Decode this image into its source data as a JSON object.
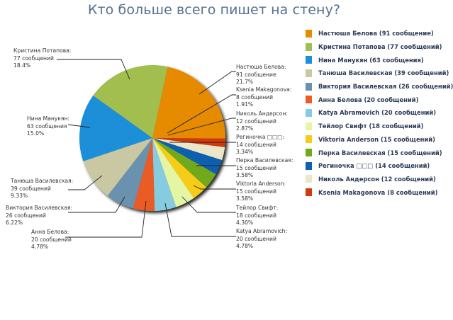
{
  "title": "Кто больше всего пишет на стену?",
  "chart_data": {
    "type": "pie",
    "title": "Кто больше всего пишет на стену?",
    "legend_position": "right",
    "start_angle_deg": 12,
    "direction": "clockwise",
    "slices": [
      {
        "name": "Настюша Белова",
        "value": 91,
        "count_text": "91 сообщение",
        "percent": "21.7%",
        "legend": "Настюша Белова (91 сообщение)",
        "color": "#e68a00"
      },
      {
        "name": "Ksenia Makagonova",
        "value": 8,
        "count_text": "8 сообщений",
        "percent": "1.91%",
        "legend": "Ksenia Makagonova (8 сообщений)",
        "color": "#d0390f"
      },
      {
        "name": "Николь Андерсон",
        "value": 12,
        "count_text": "12 сообщений",
        "percent": "2.87%",
        "legend": "Николь Андерсон (12 сообщений)",
        "color": "#ece6c8"
      },
      {
        "name": "Региночка □□□",
        "value": 14,
        "count_text": "14 сообщений",
        "percent": "3.34%",
        "legend": "Региночка □□□ (14 сообщений)",
        "color": "#1060b0"
      },
      {
        "name": "Перка Василевская",
        "value": 15,
        "count_text": "15 сообщений",
        "percent": "3.58%",
        "legend": "Перка Василевская (15 сообщений)",
        "color": "#6faa1a"
      },
      {
        "name": "Viktoria Anderson",
        "value": 15,
        "count_text": "15 сообщений",
        "percent": "3.58%",
        "legend": "Viktoria Anderson (15 сообщений)",
        "color": "#f6cc18"
      },
      {
        "name": "Тейлор Свифт",
        "value": 18,
        "count_text": "18 сообщений",
        "percent": "4.30%",
        "legend": "Тейлор Свифт (18 сообщений)",
        "color": "#e4f5a4"
      },
      {
        "name": "Katya Abramovich",
        "value": 20,
        "count_text": "20 сообщений",
        "percent": "4.78%",
        "legend": "Katya Abramovich (20 сообщений)",
        "color": "#86cce0"
      },
      {
        "name": "Анна Белова",
        "value": 20,
        "count_text": "20 сообщений",
        "percent": "4.78%",
        "legend": "Анна Белова (20 сообщений)",
        "color": "#ea5b25"
      },
      {
        "name": "Виктория Василевская",
        "value": 26,
        "count_text": "26 сообщений",
        "percent": "6.22%",
        "legend": "Виктория Василевская (26 сообщений)",
        "color": "#6a92ae"
      },
      {
        "name": "Танюша Василевская",
        "value": 39,
        "count_text": "39 сообщений",
        "percent": "9.33%",
        "legend": "Танюша Василевская (39 сообщений)",
        "color": "#c9c8a2"
      },
      {
        "name": "Нина Манукян",
        "value": 63,
        "count_text": "63 сообщения",
        "percent": "15.0%",
        "legend": "Нина Манукян (63 сообщения)",
        "color": "#1d8fd8"
      },
      {
        "name": "Кристина Потапова",
        "value": 77,
        "count_text": "77 сообщений",
        "percent": "18.4%",
        "legend": "Кристина Потапова (77 сообщений)",
        "color": "#a2be4f"
      }
    ],
    "legend_order": [
      "Настюша Белова (91 сообщение)",
      "Кристина Потапова (77 сообщений)",
      "Нина Манукян (63 сообщения)",
      "Танюша Василевская (39 сообщений)",
      "Виктория Василевская (26 сообщений)",
      "Анна Белова (20 сообщений)",
      "Katya Abramovich (20 сообщений)",
      "Тейлор Свифт (18 сообщений)",
      "Viktoria Anderson (15 сообщений)",
      "Перка Василевская (15 сообщений)",
      "Региночка □□□ (14 сообщений)",
      "Николь Андерсон (12 сообщений)",
      "Ksenia Makagonova (8 сообщений)"
    ]
  },
  "legend": [
    {
      "label": "Настюша Белова (91 сообщение)",
      "color": "#e68a00"
    },
    {
      "label": "Кристина Потапова (77 сообщений)",
      "color": "#a2be4f"
    },
    {
      "label": "Нина Манукян (63 сообщения)",
      "color": "#1d8fd8"
    },
    {
      "label": "Танюша Василевская (39 сообщений)",
      "color": "#c9c8a2"
    },
    {
      "label": "Виктория Василевская (26 сообщений)",
      "color": "#6a92ae"
    },
    {
      "label": "Анна Белова (20 сообщений)",
      "color": "#ea5b25"
    },
    {
      "label": "Katya Abramovich (20 сообщений)",
      "color": "#86cce0"
    },
    {
      "label": "Тейлор Свифт (18 сообщений)",
      "color": "#e4f5a4"
    },
    {
      "label": "Viktoria Anderson (15 сообщений)",
      "color": "#f6cc18"
    },
    {
      "label": "Перка Василевская (15 сообщений)",
      "color": "#6faa1a"
    },
    {
      "label": "Региночка □□□ (14 сообщений)",
      "color": "#1060b0"
    },
    {
      "label": "Николь Андерсон (12 сообщений)",
      "color": "#ece6c8"
    },
    {
      "label": "Ksenia Makagonova (8 сообщений)",
      "color": "#d0390f"
    }
  ],
  "labels": {
    "right": [
      {
        "name": "Настюша Белова:",
        "count": "91 сообщение",
        "pct": "21.7%"
      },
      {
        "name": "Ksenia Makagonova:",
        "count": "8 сообщений",
        "pct": "1.91%"
      },
      {
        "name": "Николь Андерсон:",
        "count": "12 сообщений",
        "pct": "2.87%"
      },
      {
        "name": "Региночка □□□:",
        "count": "14 сообщений",
        "pct": "3.34%"
      },
      {
        "name": "Перка Василевская:",
        "count": "15 сообщений",
        "pct": "3.58%"
      },
      {
        "name": "Viktoria Anderson:",
        "count": "15 сообщений",
        "pct": "3.58%"
      },
      {
        "name": "Тейлор Свифт:",
        "count": "18 сообщений",
        "pct": "4.30%"
      },
      {
        "name": "Katya Abramovich:",
        "count": "20 сообщений",
        "pct": "4.78%"
      }
    ],
    "left": [
      {
        "name": "Кристина Потапова:",
        "count": "77 сообщений",
        "pct": "18.4%"
      },
      {
        "name": "Нина Манукян:",
        "count": "63 сообщения",
        "pct": "15.0%"
      },
      {
        "name": "Танюша Василевская:",
        "count": "39 сообщений",
        "pct": "9.33%"
      },
      {
        "name": "Виктория Василевская:",
        "count": "26 сообщений",
        "pct": "6.22%"
      },
      {
        "name": "Анна Белова:",
        "count": "20 сообщений",
        "pct": "4.78%"
      }
    ]
  }
}
